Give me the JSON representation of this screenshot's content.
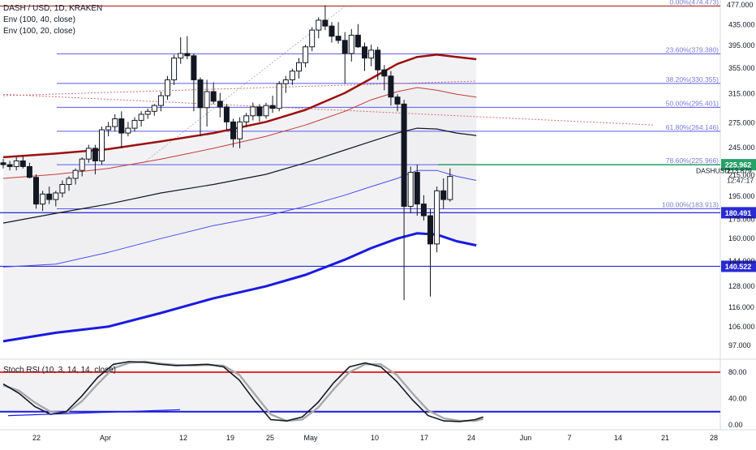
{
  "header": {
    "symbol_line": "DASH / USD, 1D, KRAKEN",
    "indicators": [
      "Env (100, 40, close)",
      "Env (100, 20, close)"
    ],
    "rsi_label": "Stoch RSI (10, 3, 14, 14, close)"
  },
  "chart_data": {
    "type": "candlestick",
    "scale": "log",
    "ylim": [
      90,
      480
    ],
    "price_ticks": [
      "435.000",
      "395.000",
      "355.000",
      "315.000",
      "275.000",
      "245.000",
      "215.000",
      "195.000",
      "175.000",
      "160.000",
      "144.000",
      "128.000",
      "116.000",
      "106.000",
      "97.000"
    ],
    "top_tick": "477.000",
    "x_tick_labels": [
      "22",
      "Apr",
      "12",
      "19",
      "25",
      "May",
      "10",
      "17",
      "24",
      "Jun",
      "7",
      "14",
      "21",
      "28"
    ],
    "candles": [
      {
        "o": 228,
        "h": 232,
        "l": 222,
        "c": 226
      },
      {
        "o": 226,
        "h": 230,
        "l": 220,
        "c": 224
      },
      {
        "o": 224,
        "h": 234,
        "l": 220,
        "c": 230
      },
      {
        "o": 230,
        "h": 236,
        "l": 222,
        "c": 224
      },
      {
        "o": 224,
        "h": 228,
        "l": 212,
        "c": 213
      },
      {
        "o": 213,
        "h": 216,
        "l": 184,
        "c": 188
      },
      {
        "o": 188,
        "h": 200,
        "l": 182,
        "c": 197
      },
      {
        "o": 197,
        "h": 204,
        "l": 188,
        "c": 192
      },
      {
        "o": 192,
        "h": 200,
        "l": 186,
        "c": 198
      },
      {
        "o": 198,
        "h": 210,
        "l": 194,
        "c": 206
      },
      {
        "o": 206,
        "h": 214,
        "l": 200,
        "c": 212
      },
      {
        "o": 212,
        "h": 222,
        "l": 206,
        "c": 220
      },
      {
        "o": 220,
        "h": 234,
        "l": 214,
        "c": 232
      },
      {
        "o": 232,
        "h": 248,
        "l": 228,
        "c": 244
      },
      {
        "o": 244,
        "h": 248,
        "l": 216,
        "c": 230
      },
      {
        "o": 230,
        "h": 270,
        "l": 226,
        "c": 266
      },
      {
        "o": 266,
        "h": 276,
        "l": 258,
        "c": 270
      },
      {
        "o": 270,
        "h": 286,
        "l": 264,
        "c": 280
      },
      {
        "o": 280,
        "h": 290,
        "l": 244,
        "c": 262
      },
      {
        "o": 262,
        "h": 276,
        "l": 258,
        "c": 268
      },
      {
        "o": 268,
        "h": 282,
        "l": 264,
        "c": 278
      },
      {
        "o": 278,
        "h": 290,
        "l": 270,
        "c": 286
      },
      {
        "o": 286,
        "h": 294,
        "l": 280,
        "c": 290
      },
      {
        "o": 290,
        "h": 300,
        "l": 284,
        "c": 298
      },
      {
        "o": 298,
        "h": 318,
        "l": 290,
        "c": 312
      },
      {
        "o": 312,
        "h": 342,
        "l": 306,
        "c": 336
      },
      {
        "o": 336,
        "h": 378,
        "l": 328,
        "c": 372
      },
      {
        "o": 372,
        "h": 410,
        "l": 362,
        "c": 380
      },
      {
        "o": 380,
        "h": 412,
        "l": 370,
        "c": 376
      },
      {
        "o": 376,
        "h": 380,
        "l": 290,
        "c": 336
      },
      {
        "o": 336,
        "h": 340,
        "l": 258,
        "c": 295
      },
      {
        "o": 295,
        "h": 336,
        "l": 270,
        "c": 318
      },
      {
        "o": 318,
        "h": 332,
        "l": 300,
        "c": 304
      },
      {
        "o": 304,
        "h": 316,
        "l": 282,
        "c": 296
      },
      {
        "o": 296,
        "h": 300,
        "l": 266,
        "c": 276
      },
      {
        "o": 276,
        "h": 280,
        "l": 245,
        "c": 255
      },
      {
        "o": 255,
        "h": 282,
        "l": 244,
        "c": 276
      },
      {
        "o": 276,
        "h": 288,
        "l": 270,
        "c": 284
      },
      {
        "o": 284,
        "h": 302,
        "l": 278,
        "c": 296
      },
      {
        "o": 296,
        "h": 300,
        "l": 276,
        "c": 284
      },
      {
        "o": 284,
        "h": 302,
        "l": 280,
        "c": 298
      },
      {
        "o": 298,
        "h": 312,
        "l": 288,
        "c": 294
      },
      {
        "o": 294,
        "h": 334,
        "l": 290,
        "c": 330
      },
      {
        "o": 330,
        "h": 342,
        "l": 316,
        "c": 336
      },
      {
        "o": 336,
        "h": 354,
        "l": 328,
        "c": 350
      },
      {
        "o": 350,
        "h": 372,
        "l": 338,
        "c": 364
      },
      {
        "o": 364,
        "h": 396,
        "l": 356,
        "c": 392
      },
      {
        "o": 392,
        "h": 430,
        "l": 384,
        "c": 424
      },
      {
        "o": 424,
        "h": 450,
        "l": 408,
        "c": 444
      },
      {
        "o": 444,
        "h": 476,
        "l": 424,
        "c": 432
      },
      {
        "o": 432,
        "h": 440,
        "l": 400,
        "c": 412
      },
      {
        "o": 412,
        "h": 440,
        "l": 398,
        "c": 404
      },
      {
        "o": 404,
        "h": 420,
        "l": 330,
        "c": 380
      },
      {
        "o": 380,
        "h": 426,
        "l": 366,
        "c": 414
      },
      {
        "o": 414,
        "h": 436,
        "l": 390,
        "c": 392
      },
      {
        "o": 392,
        "h": 400,
        "l": 350,
        "c": 372
      },
      {
        "o": 372,
        "h": 396,
        "l": 358,
        "c": 386
      },
      {
        "o": 386,
        "h": 392,
        "l": 336,
        "c": 352
      },
      {
        "o": 352,
        "h": 360,
        "l": 320,
        "c": 342
      },
      {
        "o": 342,
        "h": 350,
        "l": 298,
        "c": 310
      },
      {
        "o": 310,
        "h": 314,
        "l": 290,
        "c": 300
      },
      {
        "o": 300,
        "h": 306,
        "l": 120,
        "c": 186
      },
      {
        "o": 186,
        "h": 224,
        "l": 180,
        "c": 218
      },
      {
        "o": 218,
        "h": 226,
        "l": 178,
        "c": 188
      },
      {
        "o": 188,
        "h": 196,
        "l": 174,
        "c": 178
      },
      {
        "o": 178,
        "h": 184,
        "l": 122,
        "c": 156
      },
      {
        "o": 156,
        "h": 204,
        "l": 150,
        "c": 200
      },
      {
        "o": 200,
        "h": 212,
        "l": 184,
        "c": 192
      },
      {
        "o": 192,
        "h": 222,
        "l": 190,
        "c": 214
      }
    ],
    "fib_levels": [
      {
        "label": "0.00%(474.473)",
        "price": 474.473
      },
      {
        "label": "23.60%(379.380)",
        "price": 379.38
      },
      {
        "label": "38.20%(330.355)",
        "price": 330.355
      },
      {
        "label": "50.00%(295.401)",
        "price": 295.401
      },
      {
        "label": "61.80%(264.146)",
        "price": 264.146
      },
      {
        "label": "78.60%(225.966)",
        "price": 225.966
      },
      {
        "label": "100.00%(183.913)",
        "price": 183.913
      }
    ],
    "horizontal_lines": [
      {
        "price": 225.962,
        "label": "225.962",
        "color": "#26a269"
      },
      {
        "price": 180.491,
        "label": "180.491",
        "color": "#2a2ad4"
      },
      {
        "price": 140.522,
        "label": "140.522",
        "color": "#2a2ad4"
      }
    ],
    "current_price": {
      "symbol": "DASHUSD",
      "price": "213.879",
      "countdown": "12:47:17"
    },
    "envelopes": [
      {
        "name": "upper-40",
        "color": "#9b1010",
        "width": 2.5,
        "points": [
          [
            0,
            234
          ],
          [
            8,
            238
          ],
          [
            16,
            243
          ],
          [
            24,
            252
          ],
          [
            32,
            262
          ],
          [
            40,
            276
          ],
          [
            46,
            292
          ],
          [
            52,
            316
          ],
          [
            56,
            338
          ],
          [
            60,
            362
          ],
          [
            63,
            374
          ],
          [
            66,
            378
          ],
          [
            69,
            374
          ],
          [
            72,
            370
          ]
        ]
      },
      {
        "name": "upper-20",
        "color": "#c23c3c",
        "width": 1,
        "points": [
          [
            0,
            212
          ],
          [
            8,
            216
          ],
          [
            16,
            222
          ],
          [
            24,
            232
          ],
          [
            32,
            244
          ],
          [
            40,
            258
          ],
          [
            46,
            272
          ],
          [
            52,
            290
          ],
          [
            56,
            306
          ],
          [
            60,
            318
          ],
          [
            63,
            324
          ],
          [
            66,
            320
          ],
          [
            69,
            314
          ],
          [
            72,
            310
          ]
        ]
      },
      {
        "name": "basis",
        "color": "#131722",
        "width": 1.2,
        "points": [
          [
            0,
            172
          ],
          [
            8,
            180
          ],
          [
            16,
            188
          ],
          [
            24,
            198
          ],
          [
            32,
            206
          ],
          [
            40,
            216
          ],
          [
            46,
            228
          ],
          [
            52,
            242
          ],
          [
            56,
            252
          ],
          [
            60,
            262
          ],
          [
            63,
            268
          ],
          [
            66,
            267
          ],
          [
            69,
            262
          ],
          [
            72,
            259
          ]
        ]
      },
      {
        "name": "lower-20",
        "color": "#4a4aee",
        "width": 1,
        "points": [
          [
            0,
            140
          ],
          [
            8,
            142
          ],
          [
            16,
            150
          ],
          [
            24,
            160
          ],
          [
            32,
            170
          ],
          [
            40,
            178
          ],
          [
            46,
            186
          ],
          [
            52,
            196
          ],
          [
            56,
            204
          ],
          [
            60,
            212
          ],
          [
            63,
            220
          ],
          [
            66,
            220
          ],
          [
            69,
            214
          ],
          [
            72,
            210
          ]
        ]
      },
      {
        "name": "lower-40",
        "color": "#1a1ae0",
        "width": 3,
        "points": [
          [
            0,
            99
          ],
          [
            8,
            103
          ],
          [
            16,
            106
          ],
          [
            24,
            113
          ],
          [
            32,
            121
          ],
          [
            40,
            128
          ],
          [
            46,
            135
          ],
          [
            52,
            145
          ],
          [
            56,
            153
          ],
          [
            60,
            160
          ],
          [
            63,
            164
          ],
          [
            66,
            163
          ],
          [
            69,
            158
          ],
          [
            72,
            155
          ]
        ]
      }
    ],
    "trend_lines": [
      {
        "color": "#b8b8b8",
        "dash": true,
        "from": [
          21,
          226
        ],
        "to": [
          52,
          474
        ]
      },
      {
        "color": "#d07070",
        "dash": true,
        "from": [
          0,
          312
        ],
        "to": [
          72,
          334
        ]
      },
      {
        "color": "#d07070",
        "dash": true,
        "from": [
          0,
          314
        ],
        "to": [
          99,
          272
        ]
      }
    ],
    "stoch_rsi": {
      "ticks": [
        "80.00",
        "40.00",
        "0.00"
      ],
      "upper_band": 80,
      "lower_band": 20,
      "k": [
        [
          0,
          62
        ],
        [
          4,
          48
        ],
        [
          8,
          28
        ],
        [
          12,
          16
        ],
        [
          16,
          20
        ],
        [
          20,
          44
        ],
        [
          24,
          72
        ],
        [
          28,
          92
        ],
        [
          32,
          96
        ],
        [
          36,
          95
        ],
        [
          40,
          92
        ],
        [
          44,
          90
        ],
        [
          48,
          91
        ],
        [
          52,
          92
        ],
        [
          56,
          88
        ],
        [
          60,
          68
        ],
        [
          64,
          36
        ],
        [
          68,
          8
        ],
        [
          72,
          6
        ],
        [
          76,
          12
        ],
        [
          80,
          34
        ],
        [
          84,
          64
        ],
        [
          88,
          88
        ],
        [
          92,
          94
        ],
        [
          96,
          88
        ],
        [
          100,
          66
        ],
        [
          104,
          38
        ],
        [
          108,
          14
        ],
        [
          112,
          6
        ],
        [
          116,
          5
        ],
        [
          120,
          8
        ],
        [
          122,
          12
        ]
      ],
      "d": [
        [
          0,
          60
        ],
        [
          4,
          52
        ],
        [
          8,
          34
        ],
        [
          12,
          20
        ],
        [
          16,
          18
        ],
        [
          20,
          36
        ],
        [
          24,
          62
        ],
        [
          28,
          86
        ],
        [
          32,
          94
        ],
        [
          36,
          96
        ],
        [
          40,
          93
        ],
        [
          44,
          91
        ],
        [
          48,
          90
        ],
        [
          52,
          91
        ],
        [
          56,
          90
        ],
        [
          60,
          76
        ],
        [
          64,
          46
        ],
        [
          68,
          16
        ],
        [
          72,
          6
        ],
        [
          76,
          8
        ],
        [
          80,
          26
        ],
        [
          84,
          54
        ],
        [
          88,
          80
        ],
        [
          92,
          92
        ],
        [
          96,
          92
        ],
        [
          100,
          76
        ],
        [
          104,
          48
        ],
        [
          108,
          22
        ],
        [
          112,
          10
        ],
        [
          116,
          6
        ],
        [
          120,
          6
        ],
        [
          122,
          9
        ]
      ]
    }
  }
}
